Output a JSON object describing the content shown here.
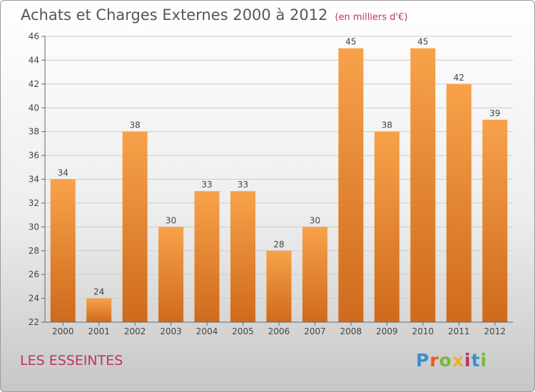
{
  "header": {
    "title": "Achats et Charges Externes 2000 à 2012",
    "unit": "(en milliers d'€)"
  },
  "footer": {
    "commune": "LES ESSEINTES",
    "logo_letters": [
      "P",
      "r",
      "o",
      "x",
      "i",
      "t",
      "i"
    ],
    "logo_colors": [
      "#3a8fd1",
      "#e85a2c",
      "#78b83a",
      "#e8b02c",
      "#c0306a",
      "#3a8fd1",
      "#78b83a"
    ]
  },
  "colors": {
    "bar_top": "#f7a24a",
    "bar_bottom": "#cf6a1c",
    "grid": "#cccccc",
    "axis": "#666666"
  },
  "chart_data": {
    "type": "bar",
    "title": "Achats et Charges Externes 2000 à 2012",
    "subtitle": "(en milliers d'€)",
    "categories": [
      "2000",
      "2001",
      "2002",
      "2003",
      "2004",
      "2005",
      "2006",
      "2007",
      "2008",
      "2009",
      "2010",
      "2011",
      "2012"
    ],
    "values": [
      34,
      24,
      38,
      30,
      33,
      33,
      28,
      30,
      45,
      38,
      45,
      42,
      39
    ],
    "ylim": [
      22,
      46
    ],
    "yticks": [
      22,
      24,
      26,
      28,
      30,
      32,
      34,
      36,
      38,
      40,
      42,
      44,
      46
    ],
    "grid": true,
    "legend": "none"
  }
}
